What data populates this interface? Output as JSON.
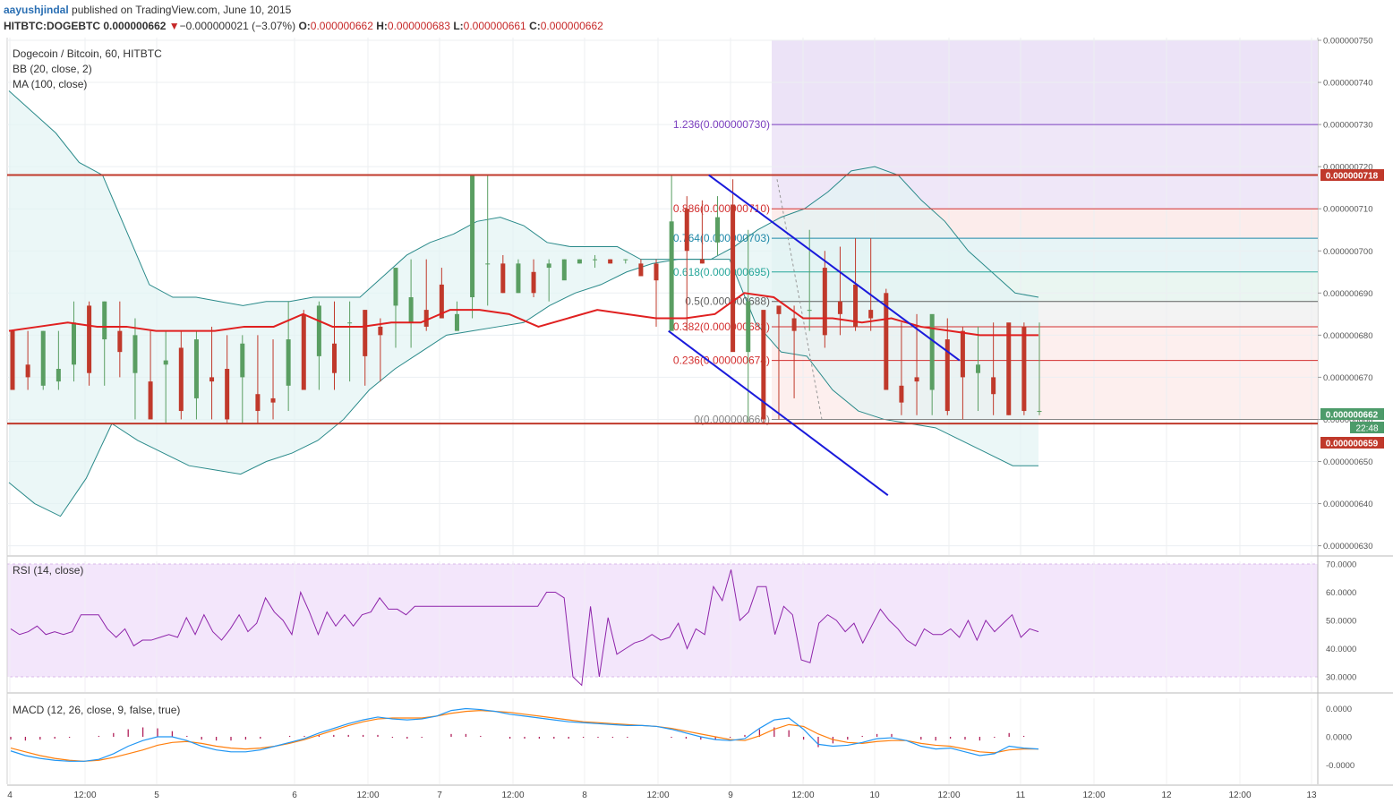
{
  "header": {
    "author": "aayushjindal",
    "published": "published on TradingView.com, June 10, 2015",
    "symbol": "HITBTC:DOGEBTC",
    "last": "0.000000662",
    "change_icon": "triangle-down-icon",
    "change": "−0.000000021 (−3.07%)",
    "o_label": "O:",
    "o": "0.000000662",
    "h_label": "H:",
    "h": "0.000000683",
    "l_label": "L:",
    "l": "0.000000661",
    "c_label": "C:",
    "c": "0.000000662"
  },
  "main_pane": {
    "title": "Dogecoin / Bitcoin, 60, HITBTC",
    "indicator1": "BB (20, close, 2)",
    "indicator2": "MA (100, close)"
  },
  "rsi_pane": {
    "title": "RSI (14, close)"
  },
  "macd_pane": {
    "title": "MACD (12, 26, close, 9, false, true)"
  },
  "price_badges": {
    "resistance": "0.000000718",
    "last": "0.000000662",
    "time": "22:48",
    "support": "0.000000659"
  },
  "fib_labels": [
    "1.236(0.000000730)",
    "0.886(0.000000710)",
    "0.764(0.000000703)",
    "0.618(0.000000695)",
    "0.5(0.000000688)",
    "0.382(0.000000682)",
    "0.236(0.000000674)",
    "0(0.000000660)"
  ],
  "colors": {
    "up": "#5a9e62",
    "down": "#c0392b",
    "ma": "#e02020",
    "bb": "#2a8a8a",
    "channel": "#1a1adb",
    "hline": "#c0392b",
    "rsi": "#8e24aa",
    "macd": "#2196f3",
    "signal": "#ff7f0e",
    "hist": "#b0205a"
  },
  "chart_data": [
    {
      "type": "candlestick",
      "title": "Dogecoin / Bitcoin, 60, HITBTC",
      "x_tick_labels": [
        "4",
        "12:00",
        "5",
        "6",
        "12:00",
        "7",
        "12:00",
        "8",
        "12:00",
        "9",
        "12:00",
        "10",
        "12:00",
        "11",
        "12:00",
        "12",
        "12:00",
        "13"
      ],
      "y_tick_labels": [
        "0.000000750",
        "0.000000740",
        "0.000000730",
        "0.000000720",
        "0.000000710",
        "0.000000700",
        "0.000000690",
        "0.000000680",
        "0.000000670",
        "0.000000660",
        "0.000000650",
        "0.000000640",
        "0.000000630"
      ],
      "ylim": [
        6.29e-07,
        7.51e-07
      ],
      "horizontal_lines": [
        7.18e-07,
        6.59e-07
      ],
      "last_price": 6.62e-07,
      "fibonacci_levels": [
        {
          "ratio": 1.236,
          "value": 7.3e-07
        },
        {
          "ratio": 0.886,
          "value": 7.1e-07
        },
        {
          "ratio": 0.764,
          "value": 7.03e-07
        },
        {
          "ratio": 0.618,
          "value": 6.95e-07
        },
        {
          "ratio": 0.5,
          "value": 6.88e-07
        },
        {
          "ratio": 0.382,
          "value": 6.82e-07
        },
        {
          "ratio": 0.236,
          "value": 6.74e-07
        },
        {
          "ratio": 0,
          "value": 6.6e-07
        }
      ],
      "descending_channel": {
        "upper": [
          [
            8.85,
            7.18e-07
          ],
          [
            9.9,
            6.74e-07
          ]
        ],
        "lower": [
          [
            8.85,
            6.81e-07
          ],
          [
            9.9,
            6.42e-07
          ]
        ]
      },
      "candles_ohlc_e9": [
        [
          681,
          681,
          667,
          667
        ],
        [
          673,
          681,
          667,
          670
        ],
        [
          668,
          681,
          667,
          681
        ],
        [
          669,
          681,
          667,
          672
        ],
        [
          673,
          688,
          669,
          683
        ],
        [
          687,
          688,
          668,
          671
        ],
        [
          679,
          688,
          668,
          688
        ],
        [
          681,
          688,
          670,
          676
        ],
        [
          671,
          684,
          660,
          680
        ],
        [
          669,
          681,
          660,
          660
        ],
        [
          673,
          681,
          659,
          674
        ],
        [
          677,
          681,
          660,
          662
        ],
        [
          665,
          681,
          660,
          679
        ],
        [
          670,
          682,
          660,
          669
        ],
        [
          672,
          680,
          659,
          660
        ],
        [
          670,
          680,
          659,
          678
        ],
        [
          666,
          680,
          659,
          662
        ],
        [
          665,
          679,
          660,
          664
        ],
        [
          668,
          688,
          662,
          679
        ],
        [
          685,
          686,
          667,
          667
        ],
        [
          675,
          688,
          667,
          687
        ],
        [
          678,
          688,
          667,
          671
        ],
        [
          683,
          688,
          669,
          683
        ],
        [
          686,
          686,
          668,
          675
        ],
        [
          682,
          684,
          669,
          680
        ],
        [
          687,
          696,
          677,
          696
        ],
        [
          683,
          698,
          677,
          689
        ],
        [
          686,
          698,
          681,
          682
        ],
        [
          692,
          696,
          684,
          684
        ],
        [
          681,
          688,
          683,
          685
        ],
        [
          689,
          718,
          684,
          718
        ],
        [
          697,
          718,
          687,
          697
        ],
        [
          697,
          699,
          690,
          690
        ],
        [
          690,
          698,
          690,
          697
        ],
        [
          695,
          698,
          689,
          690
        ],
        [
          696,
          698,
          688,
          697
        ],
        [
          693,
          698,
          694,
          698
        ],
        [
          697,
          698,
          697,
          698
        ],
        [
          698,
          699,
          696,
          698
        ],
        [
          698,
          698,
          697,
          697
        ],
        [
          698,
          698,
          697,
          698
        ],
        [
          697,
          698,
          694,
          694
        ],
        [
          697,
          698,
          682,
          693
        ],
        [
          681,
          718,
          681,
          707
        ],
        [
          710,
          713,
          681,
          700
        ],
        [
          698,
          712,
          697,
          697
        ],
        [
          702,
          713,
          699,
          708
        ],
        [
          711,
          717,
          682,
          676
        ],
        [
          676,
          705,
          659,
          688
        ],
        [
          686,
          684,
          659,
          660
        ],
        [
          687,
          686,
          660,
          685
        ],
        [
          684,
          687,
          665,
          681
        ],
        [
          686,
          705,
          681,
          686
        ],
        [
          696,
          700,
          677,
          680
        ],
        [
          688,
          701,
          680,
          685
        ],
        [
          692,
          703,
          681,
          682
        ],
        [
          686,
          703,
          681,
          684
        ],
        [
          690,
          691,
          667,
          667
        ],
        [
          668,
          683,
          661,
          664
        ],
        [
          670,
          685,
          661,
          669
        ],
        [
          667,
          684,
          661,
          685
        ],
        [
          679,
          684,
          661,
          662
        ],
        [
          681,
          682,
          660,
          670
        ],
        [
          671,
          682,
          662,
          673
        ],
        [
          670,
          683,
          661,
          666
        ],
        [
          683,
          682,
          661,
          661
        ],
        [
          682,
          683,
          661,
          662
        ],
        [
          662,
          683,
          661,
          662
        ]
      ],
      "moving_average_100_e9": [
        681,
        682,
        683,
        682,
        682,
        681,
        681,
        681,
        682,
        682,
        685,
        682,
        682,
        683,
        683,
        686,
        686,
        685,
        682,
        684,
        686,
        685,
        684,
        684,
        685,
        690,
        689,
        684,
        684,
        683,
        684,
        682,
        681,
        680,
        680,
        680
      ],
      "bollinger_upper_e9": [
        738,
        733,
        728,
        721,
        718,
        705,
        692,
        689,
        689,
        688,
        687,
        688,
        688,
        689,
        689,
        689,
        694,
        699,
        702,
        704,
        707,
        708,
        706,
        702,
        701,
        701,
        701,
        698,
        698,
        698,
        698,
        701,
        705,
        708,
        710,
        714,
        719,
        720,
        718,
        712,
        707,
        700,
        695,
        690,
        689
      ],
      "bollinger_lower_e9": [
        645,
        640,
        637,
        646,
        659,
        655,
        652,
        649,
        648,
        647,
        650,
        652,
        655,
        660,
        667,
        672,
        676,
        680,
        681,
        682,
        683,
        687,
        690,
        692,
        695,
        697,
        698,
        698,
        698,
        683,
        676,
        675,
        667,
        662,
        660,
        659,
        658,
        655,
        652,
        649,
        649
      ]
    },
    {
      "type": "line",
      "title": "RSI (14, close)",
      "y_tick_labels": [
        "70.0000",
        "60.0000",
        "50.0000",
        "40.0000",
        "30.0000"
      ],
      "ylim": [
        26,
        72
      ],
      "band": [
        30,
        70
      ],
      "values": [
        47,
        45,
        46,
        48,
        45,
        46,
        45,
        46,
        52,
        52,
        52,
        47,
        44,
        47,
        41,
        43,
        43,
        44,
        45,
        44,
        51,
        45,
        52,
        46,
        43,
        47,
        52,
        46,
        49,
        58,
        53,
        50,
        45,
        60,
        53,
        45,
        53,
        48,
        52,
        48,
        52,
        53,
        58,
        54,
        54,
        52,
        55,
        55,
        55,
        55,
        55,
        55,
        55,
        55,
        55,
        55,
        55,
        55,
        55,
        55,
        55,
        60,
        60,
        58,
        30,
        27,
        55,
        30,
        51,
        38,
        40,
        42,
        43,
        45,
        43,
        44,
        49,
        40,
        47,
        45,
        62,
        57,
        68,
        50,
        53,
        62,
        62,
        45,
        55,
        52,
        36,
        35,
        49,
        52,
        50,
        46,
        49,
        42,
        48,
        54,
        50,
        47,
        43,
        41,
        47,
        45,
        45,
        47,
        44,
        50,
        43,
        50,
        46,
        49,
        52,
        44,
        47,
        46
      ],
      "line_color": "#8e24aa"
    },
    {
      "type": "line",
      "title": "MACD (12, 26, close, 9, false, true)",
      "y_tick_labels": [
        "0.0000",
        "0.0000",
        "-0.0000"
      ],
      "macd_e9": [
        -1.5,
        -2.0,
        -2.3,
        -2.5,
        -2.6,
        -2.6,
        -2.4,
        -1.8,
        -1.0,
        -0.4,
        0.0,
        0.0,
        -0.4,
        -1.0,
        -1.4,
        -1.6,
        -1.6,
        -1.4,
        -1.0,
        -0.6,
        -0.2,
        0.4,
        0.9,
        1.4,
        1.8,
        2.1,
        1.9,
        1.8,
        1.9,
        2.2,
        2.8,
        3.0,
        2.9,
        2.7,
        2.4,
        2.2,
        2.0,
        1.8,
        1.6,
        1.5,
        1.4,
        1.3,
        1.2,
        1.2,
        1.1,
        0.8,
        0.4,
        0.0,
        -0.3,
        -0.4,
        -0.2,
        0.9,
        1.8,
        2.0,
        0.8,
        -0.8,
        -1.0,
        -0.9,
        -0.6,
        -0.2,
        -0.1,
        -0.4,
        -1.0,
        -1.3,
        -1.2,
        -1.6,
        -2.0,
        -1.8,
        -1.0,
        -1.2,
        -1.3
      ],
      "signal_e9": [
        -1.2,
        -1.6,
        -2.0,
        -2.3,
        -2.5,
        -2.6,
        -2.5,
        -2.2,
        -1.8,
        -1.4,
        -0.9,
        -0.6,
        -0.5,
        -0.7,
        -1.0,
        -1.2,
        -1.3,
        -1.2,
        -1.0,
        -0.7,
        -0.3,
        0.2,
        0.7,
        1.2,
        1.6,
        1.9,
        2.0,
        2.0,
        2.0,
        2.2,
        2.5,
        2.7,
        2.8,
        2.7,
        2.6,
        2.4,
        2.2,
        2.0,
        1.8,
        1.6,
        1.5,
        1.4,
        1.3,
        1.2,
        1.1,
        0.9,
        0.6,
        0.3,
        0.0,
        -0.3,
        -0.4,
        0.1,
        0.8,
        1.3,
        1.1,
        0.3,
        -0.3,
        -0.6,
        -0.7,
        -0.5,
        -0.4,
        -0.4,
        -0.7,
        -0.9,
        -1.0,
        -1.3,
        -1.6,
        -1.7,
        -1.4,
        -1.3,
        -1.3
      ]
    }
  ]
}
